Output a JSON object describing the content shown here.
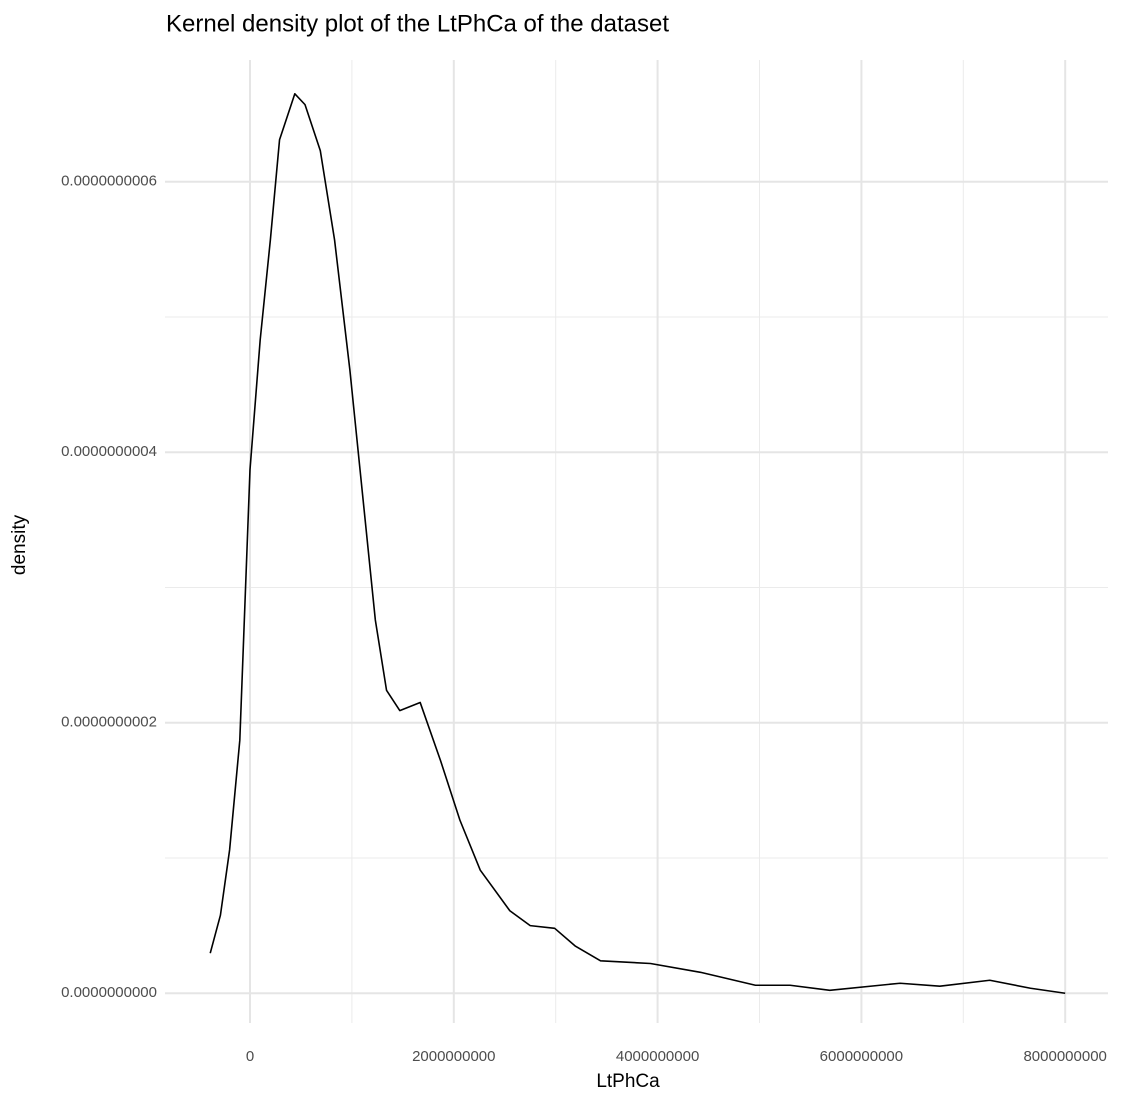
{
  "chart_data": {
    "type": "line",
    "title": "Kernel density plot of the LtPhCa of the dataset",
    "x_label": "LtPhCa",
    "y_label": "density",
    "x": [
      -390000000,
      -290000000,
      -200000000,
      -100000000,
      0,
      100000000,
      200000000,
      290000000,
      440000000,
      540000000,
      690000000,
      830000000,
      980000000,
      1080000000,
      1230000000,
      1340000000,
      1470000000,
      1670000000,
      1870000000,
      2060000000,
      2260000000,
      2550000000,
      2750000000,
      2990000000,
      3190000000,
      3440000000,
      3930000000,
      4420000000,
      4960000000,
      5300000000,
      5690000000,
      6380000000,
      6770000000,
      7260000000,
      7660000000,
      8000000000
    ],
    "series": [
      {
        "name": "density",
        "color": "#000000",
        "values": [
          2.96e-11,
          5.77e-11,
          1.06e-10,
          1.87e-10,
          3.87e-10,
          4.83e-10,
          5.57e-10,
          6.31e-10,
          6.65e-10,
          6.57e-10,
          6.23e-10,
          5.57e-10,
          4.61e-10,
          3.87e-10,
          2.76e-10,
          2.24e-10,
          2.09e-10,
          2.15e-10,
          1.72e-10,
          1.28e-10,
          9.1e-11,
          6.1e-11,
          5e-11,
          4.8e-11,
          3.5e-11,
          2.4e-11,
          2.2e-11,
          1.55e-11,
          5.9e-12,
          5.9e-12,
          2.2e-12,
          7.4e-12,
          5.2e-12,
          9.6e-12,
          3.7e-12,
          0
        ]
      }
    ],
    "xlim": [
      -834000000,
      8420000000
    ],
    "ylim": [
      -2.2e-11,
      6.9e-10
    ],
    "xticks": [
      0,
      2000000000,
      4000000000,
      6000000000,
      8000000000
    ],
    "minor_xticks": [
      1000000000,
      3000000000,
      5000000000,
      7000000000
    ],
    "yticks": [
      {
        "value": 0,
        "label": "0.0000000000"
      },
      {
        "value": 2e-10,
        "label": "0.0000000002"
      },
      {
        "value": 4e-10,
        "label": "0.0000000004"
      },
      {
        "value": 6e-10,
        "label": "0.0000000006"
      }
    ],
    "minor_yticks": [
      1e-10,
      3e-10,
      5e-10
    ],
    "grid": true
  }
}
